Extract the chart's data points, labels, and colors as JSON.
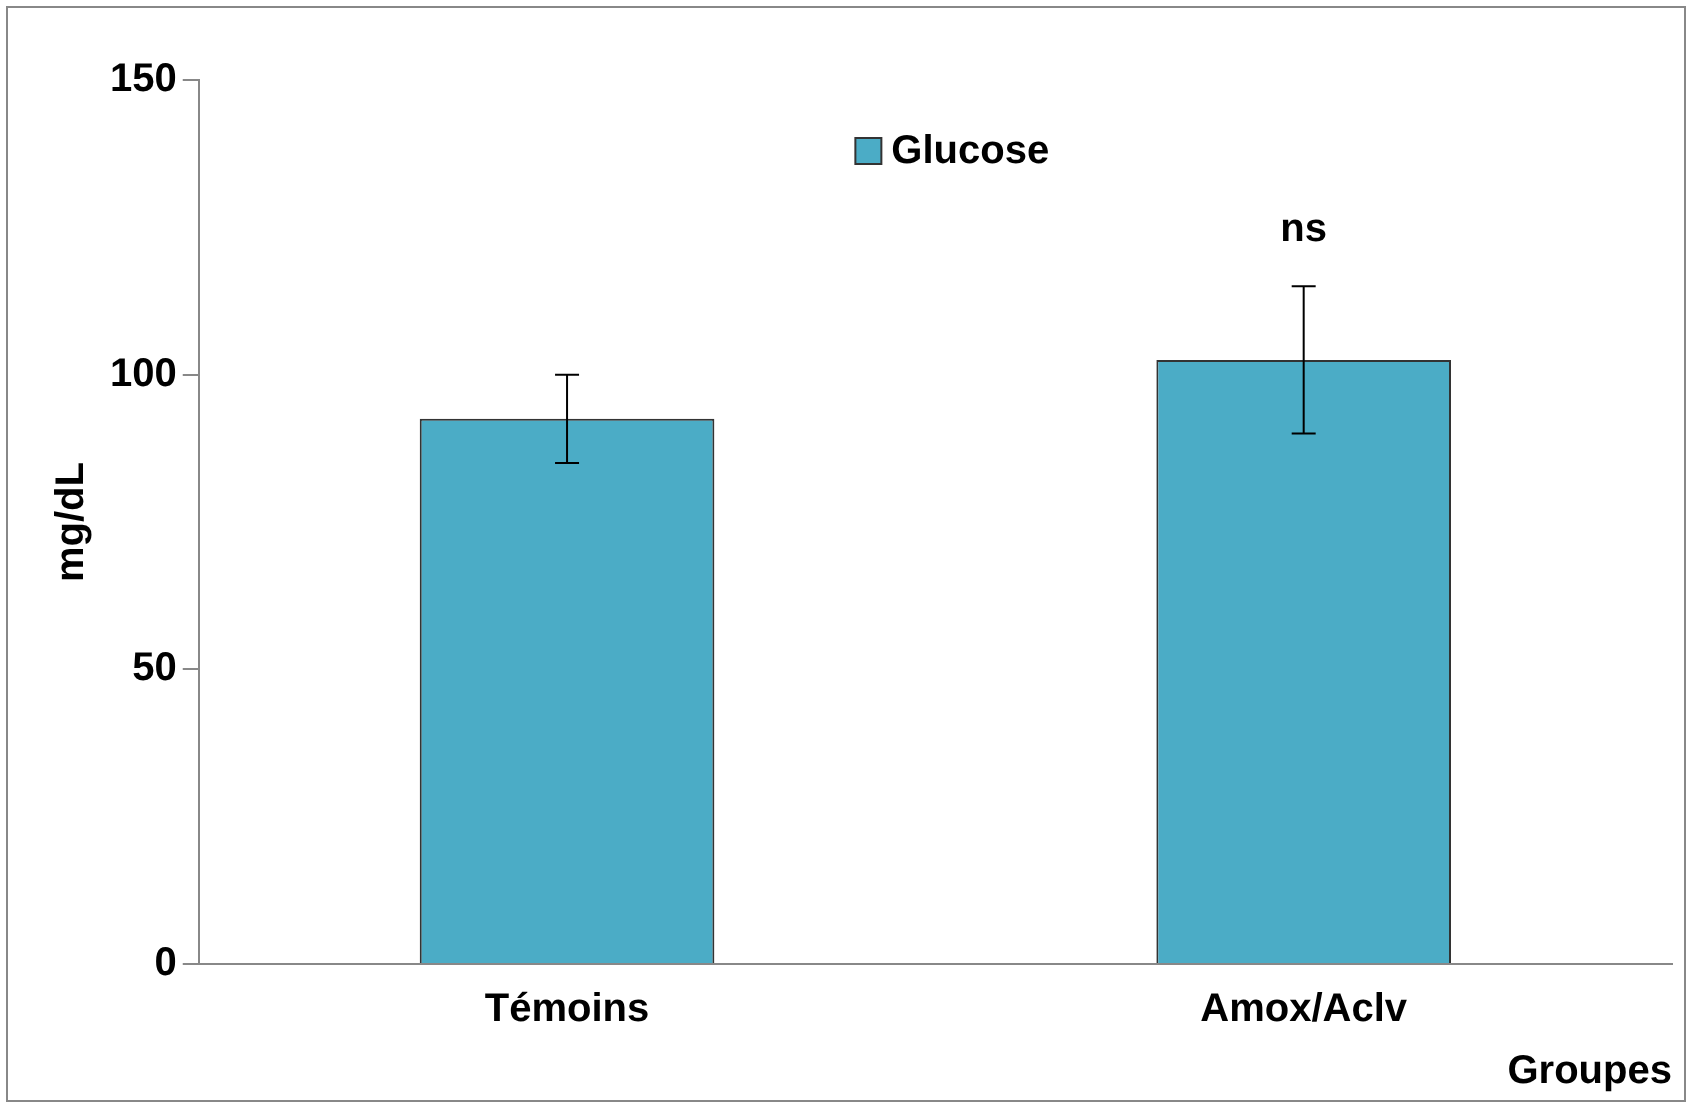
{
  "chart_data": {
    "type": "bar",
    "xlabel": "Groupes",
    "ylabel": "mg/dL",
    "categories": [
      "Témoins",
      "Amox/Aclv"
    ],
    "series": [
      {
        "name": "Glucose",
        "color": "#4bacc6",
        "values": [
          92.5,
          102.5
        ],
        "errors": [
          [
            85,
            100
          ],
          [
            90,
            115
          ]
        ]
      }
    ],
    "ylim": [
      0,
      150
    ],
    "yticks": [
      0,
      50,
      100,
      150
    ],
    "grid": false,
    "legend": "top",
    "annotations": [
      {
        "text": "ns",
        "x": "Amox/Aclv",
        "y": 115
      }
    ]
  }
}
